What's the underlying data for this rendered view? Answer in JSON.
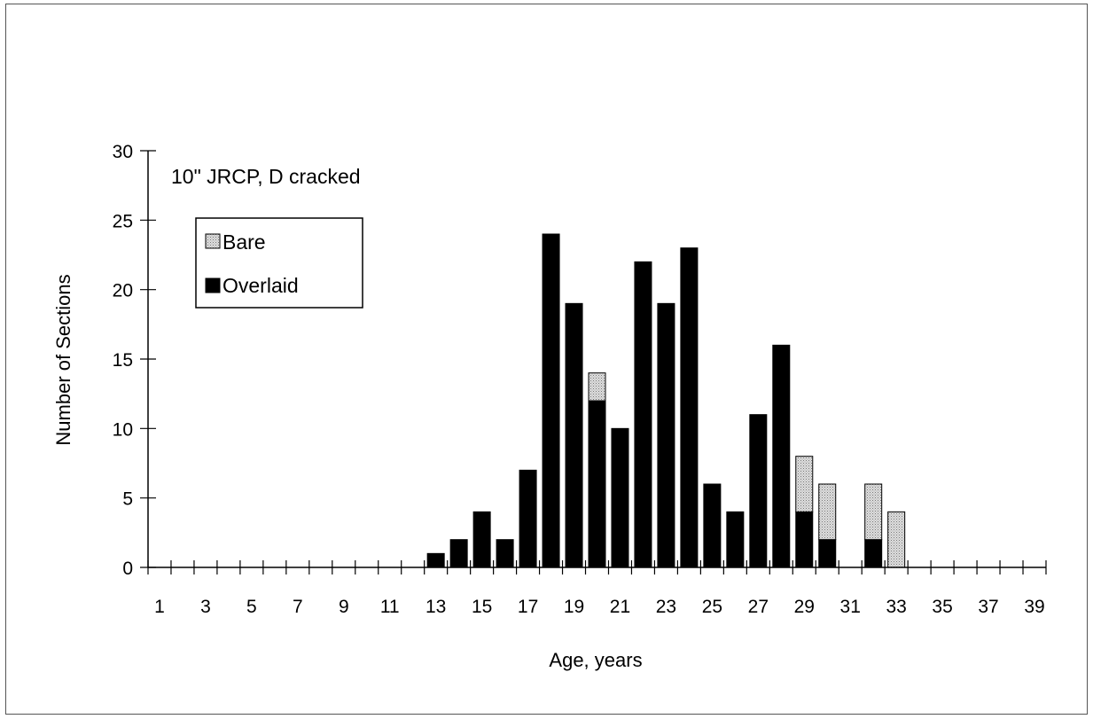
{
  "chart_data": {
    "type": "bar",
    "stacked": true,
    "annotation": "10\" JRCP, D cracked",
    "xlabel": "Age, years",
    "ylabel": "Number of Sections",
    "ylim": [
      0,
      30
    ],
    "yticks": [
      0,
      5,
      10,
      15,
      20,
      25,
      30
    ],
    "x": [
      1,
      2,
      3,
      4,
      5,
      6,
      7,
      8,
      9,
      10,
      11,
      12,
      13,
      14,
      15,
      16,
      17,
      18,
      19,
      20,
      21,
      22,
      23,
      24,
      25,
      26,
      27,
      28,
      29,
      30,
      31,
      32,
      33,
      34,
      35,
      36,
      37,
      38,
      39
    ],
    "x_tick_labels": [
      "1",
      "3",
      "5",
      "7",
      "9",
      "11",
      "13",
      "15",
      "17",
      "19",
      "21",
      "23",
      "25",
      "27",
      "29",
      "31",
      "33",
      "35",
      "37",
      "39"
    ],
    "legend_position": "top-left",
    "series": [
      {
        "name": "Overlaid",
        "color": "#000000",
        "values": [
          0,
          0,
          0,
          0,
          0,
          0,
          0,
          0,
          0,
          0,
          0,
          0,
          1,
          2,
          4,
          2,
          7,
          24,
          19,
          12,
          10,
          22,
          19,
          23,
          6,
          4,
          11,
          16,
          4,
          2,
          0,
          2,
          0,
          0,
          0,
          0,
          0,
          0,
          0
        ]
      },
      {
        "name": "Bare",
        "color": "#c8c8c8",
        "values": [
          0,
          0,
          0,
          0,
          0,
          0,
          0,
          0,
          0,
          0,
          0,
          0,
          0,
          0,
          0,
          0,
          0,
          0,
          0,
          2,
          0,
          0,
          0,
          0,
          0,
          0,
          0,
          0,
          4,
          4,
          0,
          4,
          4,
          0,
          0,
          0,
          0,
          0,
          0
        ]
      }
    ]
  }
}
